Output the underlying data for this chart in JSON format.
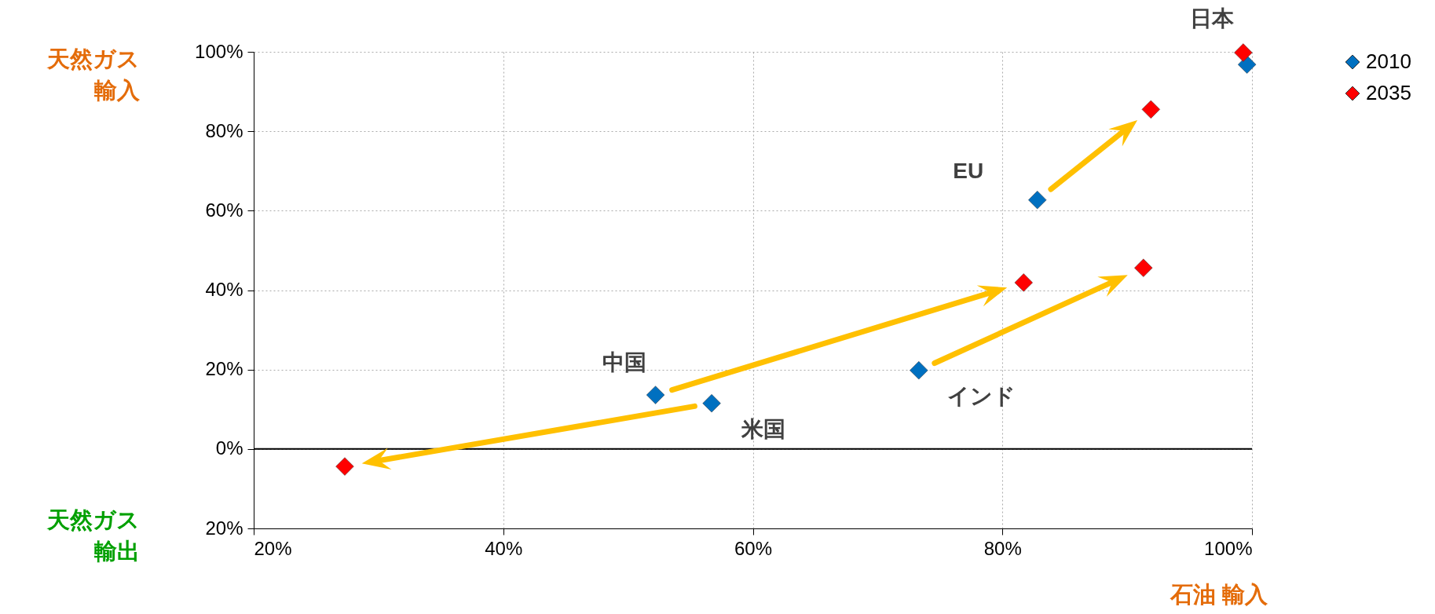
{
  "chart_data": {
    "type": "scatter",
    "xlabel": "石油 輸入",
    "ylabel": "天然ガス輸入",
    "series": [
      {
        "name": "2010",
        "color": "#0070c0",
        "x": [
          99.6,
          82.8,
          52.2,
          56.7,
          73.3
        ],
        "values": [
          96.8,
          62.7,
          13.6,
          11.5,
          19.8
        ]
      },
      {
        "name": "2035",
        "color": "#ff0000",
        "x": [
          99.3,
          91.9,
          81.7,
          27.3,
          91.3
        ],
        "values": [
          99.8,
          85.5,
          41.9,
          -4.4,
          45.6
        ]
      }
    ],
    "xlim": [
      20,
      100
    ],
    "xticks": [
      {
        "value": 20,
        "label": "20%"
      },
      {
        "value": 40,
        "label": "40%"
      },
      {
        "value": 60,
        "label": "60%"
      },
      {
        "value": 80,
        "label": "80%"
      },
      {
        "value": 100,
        "label": "100%"
      }
    ],
    "ylim": [
      -20,
      100
    ],
    "yticks": [
      {
        "value": -20,
        "label": "20%"
      },
      {
        "value": 0,
        "label": "0%"
      },
      {
        "value": 20,
        "label": "20%"
      },
      {
        "value": 40,
        "label": "40%"
      },
      {
        "value": 60,
        "label": "60%"
      },
      {
        "value": 80,
        "label": "80%"
      },
      {
        "value": 100,
        "label": "100%"
      }
    ],
    "ref_lines": [
      {
        "axis": "y",
        "value": 0,
        "color": "#000000"
      }
    ],
    "annotations": [
      "天然ガス輸出",
      {
        "text": "日本",
        "x": 99.3,
        "y": 99.8
      },
      {
        "text": "EU",
        "x": 82.8,
        "y": 62.7
      },
      {
        "text": "中国",
        "x": 52.2,
        "y": 13.6
      },
      {
        "text": "米国",
        "x": 56.7,
        "y": 11.5
      },
      {
        "text": "インド",
        "x": 73.3,
        "y": 19.8
      }
    ],
    "grid": true,
    "legend": "top right",
    "marker": "diamond"
  }
}
